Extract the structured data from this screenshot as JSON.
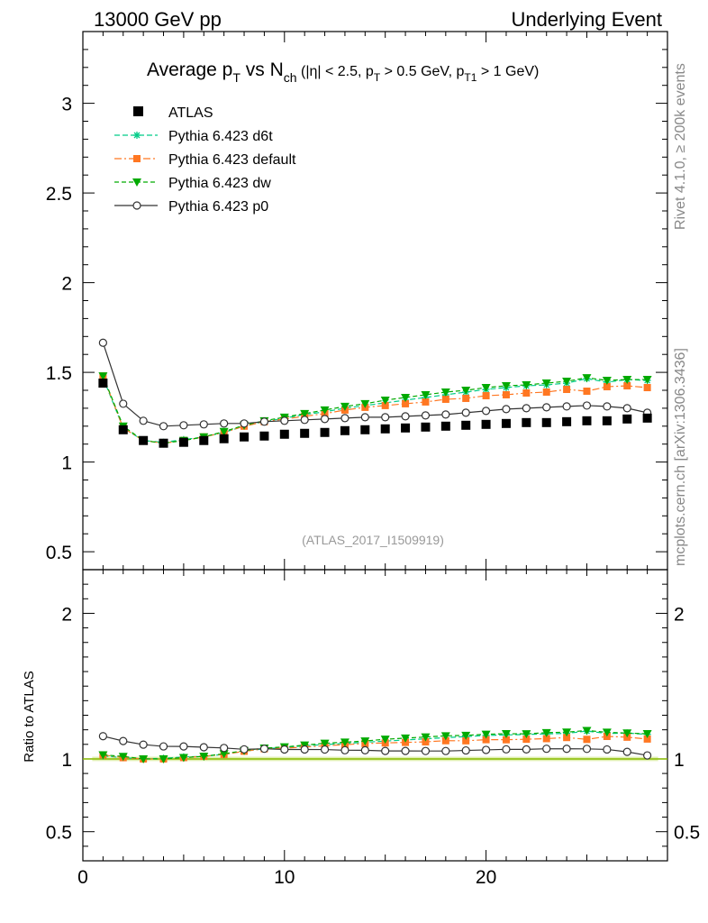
{
  "header": {
    "left": "13000 GeV pp",
    "right": "Underlying Event"
  },
  "side": {
    "rivet": "Rivet 4.1.0, ≥ 200k events",
    "mcplots": "mcplots.cern.ch [arXiv:1306.3436]"
  },
  "chart_data": {
    "type": "scatter",
    "title": {
      "main": "Average p",
      "sub1": "T",
      "mid": " vs N",
      "sub2": "ch",
      "cuts_a": " (|η| < 2.5, p",
      "sub3": "T",
      "cuts_b": " > 0.5 GeV, p",
      "sub4": "T1",
      "cuts_c": " > 1 GeV)"
    },
    "analysis_label": "(ATLAS_2017_I1509919)",
    "xlim": [
      0,
      29
    ],
    "ylim": [
      0.4,
      3.4
    ],
    "ratio_ylim": [
      0.3,
      2.3
    ],
    "x_ticks": [
      "0",
      "10",
      "20"
    ],
    "y_ticks": [
      "0.5",
      "1",
      "1.5",
      "2",
      "2.5",
      "3"
    ],
    "ratio_ticks": [
      "0.5",
      "1",
      "2"
    ],
    "ratio_ylabel": "Ratio to ATLAS",
    "x": [
      1,
      2,
      3,
      4,
      5,
      6,
      7,
      8,
      9,
      10,
      11,
      12,
      13,
      14,
      15,
      16,
      17,
      18,
      19,
      20,
      21,
      22,
      23,
      24,
      25,
      26,
      27,
      28
    ],
    "reference": {
      "name": "ATLAS",
      "color": "#000000",
      "values": [
        1.44,
        1.18,
        1.12,
        1.105,
        1.11,
        1.12,
        1.13,
        1.14,
        1.145,
        1.155,
        1.16,
        1.165,
        1.175,
        1.18,
        1.185,
        1.19,
        1.195,
        1.2,
        1.205,
        1.21,
        1.215,
        1.22,
        1.22,
        1.225,
        1.23,
        1.23,
        1.24,
        1.245
      ]
    },
    "series": [
      {
        "name": "Pythia 6.423 d6t",
        "color": "#00cc88",
        "dash": "6,3",
        "marker": "star",
        "values": [
          1.47,
          1.19,
          1.12,
          1.11,
          1.125,
          1.14,
          1.165,
          1.2,
          1.225,
          1.245,
          1.265,
          1.28,
          1.3,
          1.315,
          1.33,
          1.345,
          1.36,
          1.375,
          1.39,
          1.405,
          1.415,
          1.425,
          1.43,
          1.44,
          1.465,
          1.445,
          1.46,
          1.455
        ]
      },
      {
        "name": "Pythia 6.423 default",
        "color": "#ff7722",
        "dash": "8,3,2,3",
        "marker": "square",
        "values": [
          1.48,
          1.19,
          1.12,
          1.105,
          1.12,
          1.14,
          1.165,
          1.2,
          1.225,
          1.24,
          1.255,
          1.27,
          1.29,
          1.305,
          1.315,
          1.325,
          1.335,
          1.35,
          1.355,
          1.37,
          1.375,
          1.385,
          1.39,
          1.405,
          1.395,
          1.42,
          1.425,
          1.415
        ]
      },
      {
        "name": "Pythia 6.423 dw",
        "color": "#00aa00",
        "dash": "5,3",
        "marker": "triangle",
        "values": [
          1.48,
          1.2,
          1.12,
          1.105,
          1.12,
          1.14,
          1.17,
          1.205,
          1.23,
          1.25,
          1.27,
          1.29,
          1.31,
          1.325,
          1.345,
          1.36,
          1.375,
          1.39,
          1.4,
          1.415,
          1.425,
          1.43,
          1.44,
          1.45,
          1.47,
          1.455,
          1.46,
          1.46
        ]
      },
      {
        "name": "Pythia 6.423 p0",
        "color": "#333333",
        "dash": "",
        "marker": "circle",
        "values": [
          1.665,
          1.325,
          1.23,
          1.2,
          1.205,
          1.21,
          1.215,
          1.215,
          1.225,
          1.23,
          1.235,
          1.24,
          1.245,
          1.25,
          1.25,
          1.255,
          1.26,
          1.265,
          1.275,
          1.285,
          1.295,
          1.3,
          1.305,
          1.31,
          1.315,
          1.31,
          1.3,
          1.275
        ]
      }
    ],
    "ratio_band_color": "#ddeeaa",
    "ratio_line_color": "#88bb00"
  }
}
